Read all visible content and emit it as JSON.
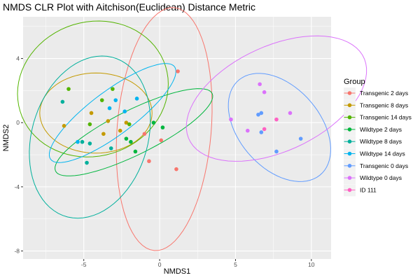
{
  "chart_data": {
    "type": "scatter",
    "title": "NMDS CLR Plot with Aitchison(Euclidean) Distance Metric",
    "xlabel": "NMDS1",
    "ylabel": "NMDS2",
    "xlim": [
      -9,
      11.3
    ],
    "ylim": [
      -8.5,
      6.6
    ],
    "xticks": [
      -5,
      0,
      5,
      10
    ],
    "yticks": [
      -8,
      -4,
      0,
      4
    ],
    "grid": true,
    "legend": {
      "title": "Group",
      "position": "right"
    },
    "series": [
      {
        "name": "Transgenic 2 days",
        "color": "#F8766D",
        "points": [
          [
            1.2,
            3.2
          ],
          [
            -1.0,
            -0.7
          ],
          [
            0.1,
            -1.1
          ],
          [
            -0.7,
            -2.4
          ],
          [
            1.1,
            -2.9
          ]
        ],
        "ellipse": {
          "cx": 0.3,
          "cy": -0.4,
          "rx": 7.6,
          "ry": 3.1,
          "angle": 85
        }
      },
      {
        "name": "Transgenic 8 days",
        "color": "#C49A00",
        "points": [
          [
            -6.3,
            -0.2
          ],
          [
            -4.5,
            0.6
          ],
          [
            -3.7,
            -0.7
          ],
          [
            -3.4,
            0.1
          ],
          [
            -2.2,
            0.0
          ],
          [
            -2.6,
            -0.5
          ]
        ],
        "ellipse": {
          "cx": -4.2,
          "cy": 0.6,
          "rx": 3.7,
          "ry": 2.5,
          "angle": 0
        }
      },
      {
        "name": "Transgenic 14 days",
        "color": "#53B400",
        "points": [
          [
            -6.0,
            2.1
          ],
          [
            -3.8,
            1.4
          ],
          [
            -3.1,
            2.1
          ],
          [
            -4.6,
            -0.1
          ],
          [
            -2.0,
            -0.1
          ]
        ],
        "ellipse": {
          "cx": -4.4,
          "cy": 2.1,
          "rx": 5.0,
          "ry": 4.2,
          "angle": 12
        }
      },
      {
        "name": "Wildtype 2 days",
        "color": "#00B63E",
        "points": [
          [
            -0.4,
            0.0
          ],
          [
            0.2,
            -0.3
          ],
          [
            -2.2,
            -1.0
          ],
          [
            -1.9,
            -1.2
          ],
          [
            -1.6,
            -1.8
          ]
        ],
        "ellipse": {
          "cx": -1.7,
          "cy": -0.6,
          "rx": 5.7,
          "ry": 1.4,
          "angle": 25
        }
      },
      {
        "name": "Wildtype 8 days",
        "color": "#00B09C",
        "points": [
          [
            -6.4,
            1.3
          ],
          [
            -5.1,
            -1.2
          ],
          [
            -4.6,
            -1.3
          ],
          [
            -4.8,
            -2.5
          ],
          [
            -3.2,
            -1.6
          ]
        ],
        "ellipse": {
          "cx": -4.6,
          "cy": -0.9,
          "rx": 5.2,
          "ry": 3.8,
          "angle": 70
        }
      },
      {
        "name": "Wildtype 14 days",
        "color": "#00B4EF",
        "points": [
          [
            -3.3,
            0.9
          ],
          [
            -2.9,
            1.4
          ],
          [
            -2.3,
            0.7
          ],
          [
            -1.5,
            1.5
          ],
          [
            -5.4,
            -1.2
          ]
        ],
        "ellipse": {
          "cx": -3.1,
          "cy": 0.6,
          "rx": 5.0,
          "ry": 1.4,
          "angle": 35
        }
      },
      {
        "name": "Transgenic 0 days",
        "color": "#619CFF",
        "points": [
          [
            6.5,
            0.5
          ],
          [
            6.7,
            0.6
          ],
          [
            6.7,
            -0.6
          ],
          [
            7.7,
            -1.8
          ],
          [
            9.3,
            -1.0
          ]
        ],
        "ellipse": {
          "cx": 7.9,
          "cy": -0.3,
          "rx": 4.0,
          "ry": 2.6,
          "angle": -45
        }
      },
      {
        "name": "Wildtype 0 days",
        "color": "#DB72FB",
        "points": [
          [
            4.7,
            0.2
          ],
          [
            5.8,
            -0.5
          ],
          [
            6.9,
            1.9
          ],
          [
            6.6,
            2.4
          ],
          [
            8.6,
            0.6
          ]
        ],
        "ellipse": {
          "cx": 7.7,
          "cy": 1.5,
          "rx": 6.3,
          "ry": 3.3,
          "angle": 23
        }
      },
      {
        "name": "ID 111",
        "color": "#FF61C3",
        "points": [
          [
            6.9,
            -0.4
          ],
          [
            7.7,
            0.2
          ]
        ],
        "ellipse": null
      }
    ]
  }
}
